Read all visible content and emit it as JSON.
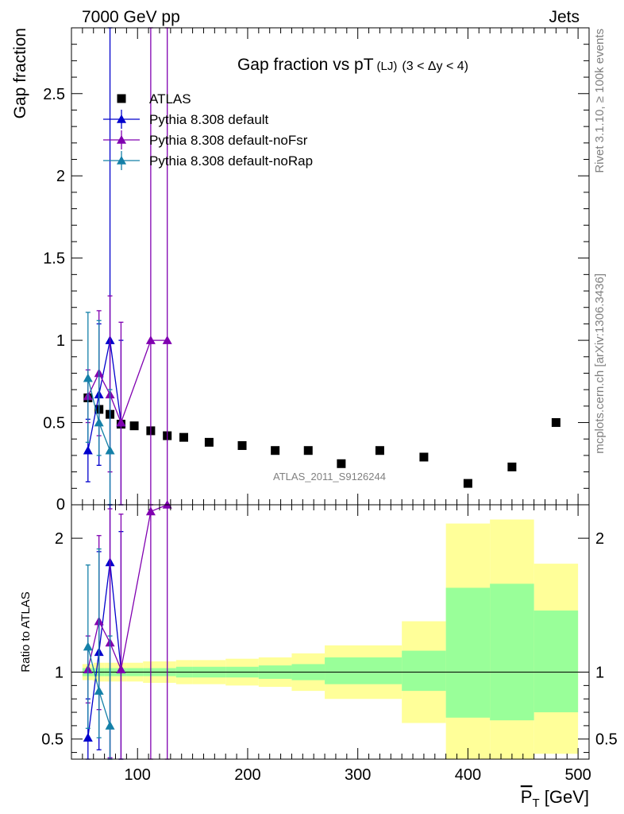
{
  "header": {
    "left": "7000 GeV pp",
    "right": "Jets"
  },
  "side_labels": {
    "rivet": "Rivet 3.1.10, ≥ 100k events",
    "mcplots": "mcplots.cern.ch [arXiv:1306.3436]"
  },
  "chart_data": [
    {
      "type": "scatter",
      "panel": "main",
      "title": "Gap fraction vs pT",
      "title_small": "(LJ)",
      "title_range": "(3 < Δy < 4)",
      "ylabel": "Gap fraction",
      "xlabel": "P̅T [GeV]",
      "analysis_label": "ATLAS_2011_S9126244",
      "xlim": [
        40,
        510
      ],
      "ylim": [
        0,
        2.9
      ],
      "yticks": [
        0.5,
        1,
        1.5,
        2,
        2.5
      ],
      "ytick_labels": [
        "0.5",
        "1",
        "1.5",
        "2",
        "2.5"
      ],
      "ytick_bottom_label": "0",
      "xticks": [
        100,
        200,
        300,
        400,
        500
      ],
      "legend_position": "top-left",
      "series": [
        {
          "name": "ATLAS",
          "color": "#000000",
          "marker": "square",
          "x": [
            55,
            65,
            75,
            85,
            97,
            112,
            127,
            142,
            165,
            195,
            225,
            255,
            285,
            320,
            360,
            400,
            440,
            480
          ],
          "y": [
            0.65,
            0.58,
            0.55,
            0.49,
            0.48,
            0.45,
            0.42,
            0.41,
            0.38,
            0.36,
            0.33,
            0.33,
            0.25,
            0.33,
            0.29,
            0.13,
            0.23,
            0.5
          ],
          "ylow": [
            0.65,
            0.58,
            0.55,
            0.49,
            0.48,
            0.45,
            0.42,
            0.41,
            0.38,
            0.36,
            0.33,
            0.33,
            0.25,
            0.33,
            0.29,
            0.13,
            0.23,
            0.5
          ],
          "yhigh": [
            0.65,
            0.58,
            0.55,
            0.49,
            0.48,
            0.45,
            0.42,
            0.41,
            0.38,
            0.36,
            0.33,
            0.33,
            0.25,
            0.33,
            0.29,
            0.13,
            0.23,
            0.5
          ]
        },
        {
          "name": "Pythia 8.308 default",
          "color": "#0000cc",
          "marker": "triangle",
          "x": [
            55,
            65,
            75,
            85
          ],
          "y": [
            0.33,
            0.67,
            1.0,
            0.5
          ],
          "ylow": [
            0.14,
            0.24,
            0.0,
            0.0
          ],
          "yhigh": [
            0.52,
            1.1,
            2.9,
            1.0
          ]
        },
        {
          "name": "Pythia 8.308 default-noFsr",
          "color": "#8000b0",
          "marker": "triangle",
          "x": [
            55,
            65,
            75,
            85,
            112,
            127
          ],
          "y": [
            0.66,
            0.8,
            0.67,
            0.5,
            1.0,
            1.0
          ],
          "ylow": [
            0.5,
            0.42,
            0.2,
            0.0,
            0.0,
            0.0
          ],
          "yhigh": [
            0.82,
            1.18,
            1.27,
            1.11,
            2.9,
            2.9
          ]
        },
        {
          "name": "Pythia 8.308 default-noRap",
          "color": "#1480a8",
          "marker": "triangle",
          "x": [
            55,
            65,
            75
          ],
          "y": [
            0.77,
            0.5,
            0.33
          ],
          "ylow": [
            0.38,
            0.3,
            0.0
          ],
          "yhigh": [
            1.17,
            1.12,
            0.7
          ]
        }
      ]
    },
    {
      "type": "scatter",
      "panel": "ratio",
      "ylabel": "Ratio to ATLAS",
      "xlim": [
        40,
        510
      ],
      "ylim": [
        0.35,
        2.25
      ],
      "yticks": [
        0.5,
        1,
        2
      ],
      "ytick_labels": [
        "0.5",
        "1",
        "2"
      ],
      "xticks": [
        100,
        200,
        300,
        400,
        500
      ],
      "xtick_labels": [
        "100",
        "200",
        "300",
        "400",
        "500"
      ],
      "bands": {
        "edges": [
          50,
          60,
          70,
          80,
          90,
          105,
          120,
          135,
          150,
          180,
          210,
          240,
          270,
          340,
          380,
          420,
          460,
          500
        ],
        "green_lo": [
          0.97,
          0.97,
          0.97,
          0.97,
          0.97,
          0.97,
          0.97,
          0.96,
          0.96,
          0.96,
          0.95,
          0.94,
          0.91,
          0.86,
          0.66,
          0.64,
          0.7
        ],
        "green_hi": [
          1.03,
          1.03,
          1.03,
          1.03,
          1.03,
          1.03,
          1.03,
          1.04,
          1.04,
          1.04,
          1.05,
          1.06,
          1.11,
          1.16,
          1.63,
          1.66,
          1.46
        ],
        "yellow_lo": [
          0.94,
          0.93,
          0.93,
          0.93,
          0.93,
          0.92,
          0.92,
          0.91,
          0.91,
          0.9,
          0.89,
          0.86,
          0.8,
          0.62,
          0.34,
          0.32,
          0.39
        ],
        "yellow_hi": [
          1.06,
          1.07,
          1.07,
          1.07,
          1.07,
          1.08,
          1.08,
          1.09,
          1.09,
          1.1,
          1.11,
          1.14,
          1.2,
          1.38,
          2.11,
          2.14,
          1.81
        ]
      },
      "series": [
        {
          "name": "Pythia 8.308 default",
          "color": "#0000cc",
          "x": [
            55,
            65,
            75,
            85
          ],
          "y": [
            0.51,
            1.15,
            1.82,
            1.02
          ],
          "ylow": [
            0.24,
            0.42,
            0.0,
            0.0
          ],
          "yhigh": [
            0.8,
            1.9,
            2.25,
            2.05
          ]
        },
        {
          "name": "Pythia 8.308 default-noFsr",
          "color": "#8000b0",
          "x": [
            55,
            65,
            75,
            85,
            112,
            127
          ],
          "y": [
            1.02,
            1.38,
            1.22,
            1.02,
            2.2,
            2.27
          ],
          "ylow": [
            0.77,
            0.72,
            0.36,
            0.0,
            0.0,
            0.0
          ],
          "yhigh": [
            1.27,
            2.02,
            2.22,
            2.18,
            2.25,
            2.25
          ]
        },
        {
          "name": "Pythia 8.308 default-noRap",
          "color": "#1480a8",
          "x": [
            55,
            65,
            75
          ],
          "y": [
            1.19,
            0.86,
            0.6
          ],
          "ylow": [
            0.58,
            0.51,
            0.0
          ],
          "yhigh": [
            1.8,
            1.92,
            1.27
          ]
        }
      ]
    }
  ]
}
